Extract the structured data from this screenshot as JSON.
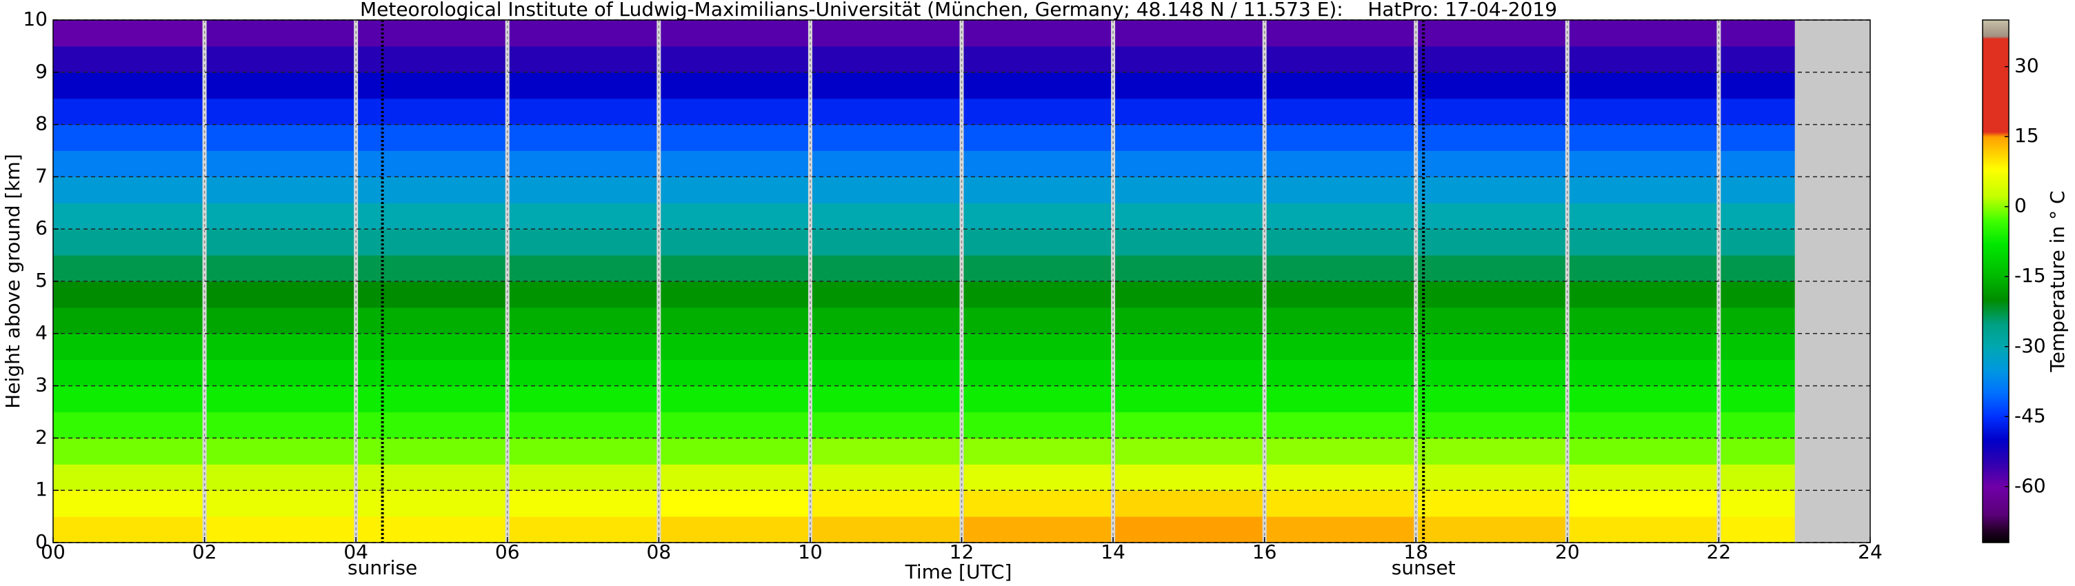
{
  "chart_data": {
    "type": "heatmap",
    "title": "Meteorological Institute of Ludwig-Maximilians-Universität (München, Germany; 48.148 N / 11.573 E):    HatPro: 17-04-2019",
    "xlabel": "Time [UTC]",
    "ylabel": "Height above ground [km]",
    "colorbar_label": "Temperature in ° C",
    "x": [
      0,
      2,
      4,
      6,
      8,
      10,
      12,
      14,
      16,
      18,
      20,
      22,
      23
    ],
    "y": [
      0,
      0.5,
      1,
      1.5,
      2,
      2.5,
      3,
      3.5,
      4,
      4.5,
      5,
      5.5,
      6,
      6.5,
      7,
      7.5,
      8,
      8.5,
      9,
      9.5,
      10
    ],
    "values": [
      [
        10,
        9,
        9,
        10,
        11,
        12,
        14,
        15,
        14,
        12,
        10,
        9
      ],
      [
        7,
        6,
        6,
        7,
        8,
        9,
        10,
        11,
        10,
        9,
        8,
        7
      ],
      [
        3,
        3,
        3,
        3,
        4,
        4,
        5,
        5,
        5,
        4,
        4,
        3
      ],
      [
        -1,
        -1,
        -1,
        -1,
        -1,
        0,
        0,
        0,
        0,
        0,
        -1,
        -1
      ],
      [
        -4,
        -4,
        -4,
        -4,
        -4,
        -4,
        -4,
        -3,
        -3,
        -4,
        -4,
        -4
      ],
      [
        -7,
        -7,
        -7,
        -7,
        -7,
        -7,
        -7,
        -7,
        -7,
        -7,
        -7,
        -7
      ],
      [
        -10,
        -10,
        -10,
        -10,
        -10,
        -10,
        -10,
        -10,
        -10,
        -10,
        -10,
        -10
      ],
      [
        -13,
        -13,
        -13,
        -13,
        -13,
        -13,
        -13,
        -13,
        -13,
        -13,
        -13,
        -13
      ],
      [
        -17,
        -17,
        -16,
        -16,
        -16,
        -16,
        -16,
        -16,
        -16,
        -16,
        -16,
        -16
      ],
      [
        -20,
        -20,
        -20,
        -19,
        -19,
        -19,
        -19,
        -19,
        -19,
        -19,
        -19,
        -19
      ],
      [
        -23,
        -23,
        -23,
        -23,
        -23,
        -23,
        -23,
        -23,
        -23,
        -23,
        -23,
        -23
      ],
      [
        -27,
        -27,
        -27,
        -27,
        -27,
        -27,
        -27,
        -27,
        -27,
        -27,
        -27,
        -27
      ],
      [
        -30,
        -30,
        -30,
        -30,
        -30,
        -30,
        -30,
        -30,
        -30,
        -30,
        -30,
        -30
      ],
      [
        -34,
        -34,
        -34,
        -34,
        -34,
        -34,
        -34,
        -34,
        -34,
        -34,
        -34,
        -34
      ],
      [
        -38,
        -38,
        -38,
        -38,
        -38,
        -38,
        -38,
        -38,
        -38,
        -38,
        -38,
        -38
      ],
      [
        -42,
        -42,
        -42,
        -42,
        -42,
        -42,
        -42,
        -42,
        -42,
        -42,
        -42,
        -42
      ],
      [
        -46,
        -46,
        -46,
        -46,
        -46,
        -46,
        -46,
        -46,
        -46,
        -46,
        -46,
        -46
      ],
      [
        -50,
        -50,
        -50,
        -50,
        -50,
        -50,
        -50,
        -50,
        -50,
        -50,
        -50,
        -50
      ],
      [
        -54,
        -54,
        -54,
        -54,
        -54,
        -54,
        -54,
        -54,
        -54,
        -54,
        -54,
        -54
      ],
      [
        -59,
        -58,
        -58,
        -58,
        -58,
        -58,
        -58,
        -58,
        -58,
        -58,
        -58,
        -58
      ]
    ],
    "xlim": [
      0,
      24
    ],
    "ylim": [
      0,
      10
    ],
    "xticks": [
      {
        "value": 0,
        "label": "00"
      },
      {
        "value": 2,
        "label": "02"
      },
      {
        "value": 4,
        "label": "04"
      },
      {
        "value": 6,
        "label": "06"
      },
      {
        "value": 8,
        "label": "08"
      },
      10,
      12,
      14,
      16,
      18,
      20,
      22,
      24
    ],
    "yticks": [
      0,
      1,
      2,
      3,
      4,
      5,
      6,
      7,
      8,
      9,
      10
    ],
    "grid": true,
    "annotations": [
      {
        "text": "sunrise",
        "x": 4.35
      },
      {
        "text": "sunset",
        "x": 18.1
      }
    ],
    "clim": [
      -72,
      40
    ],
    "cticks": [
      -60,
      -45,
      -30,
      -15,
      0,
      15,
      30
    ],
    "colorscale": [
      {
        "value": -72,
        "color": "#000000"
      },
      {
        "value": -69,
        "color": "#2a0030"
      },
      {
        "value": -66,
        "color": "#5a0078"
      },
      {
        "value": -60,
        "color": "#7000a8"
      },
      {
        "value": -55,
        "color": "#3000b0"
      },
      {
        "value": -50,
        "color": "#0000c8"
      },
      {
        "value": -45,
        "color": "#0030ff"
      },
      {
        "value": -40,
        "color": "#0070ff"
      },
      {
        "value": -35,
        "color": "#0098e0"
      },
      {
        "value": -30,
        "color": "#00a8b0"
      },
      {
        "value": -25,
        "color": "#00a080"
      },
      {
        "value": -20,
        "color": "#008c00"
      },
      {
        "value": -15,
        "color": "#00b800"
      },
      {
        "value": -8,
        "color": "#00e800"
      },
      {
        "value": -3,
        "color": "#40ff00"
      },
      {
        "value": 2,
        "color": "#c0ff00"
      },
      {
        "value": 8,
        "color": "#ffff00"
      },
      {
        "value": 15,
        "color": "#ffa000"
      },
      {
        "value": 16,
        "color": "#e03020"
      },
      {
        "value": 36,
        "color": "#e03020"
      },
      {
        "value": 36.5,
        "color": "#a09080"
      },
      {
        "value": 40,
        "color": "#c8c0a8"
      }
    ]
  }
}
